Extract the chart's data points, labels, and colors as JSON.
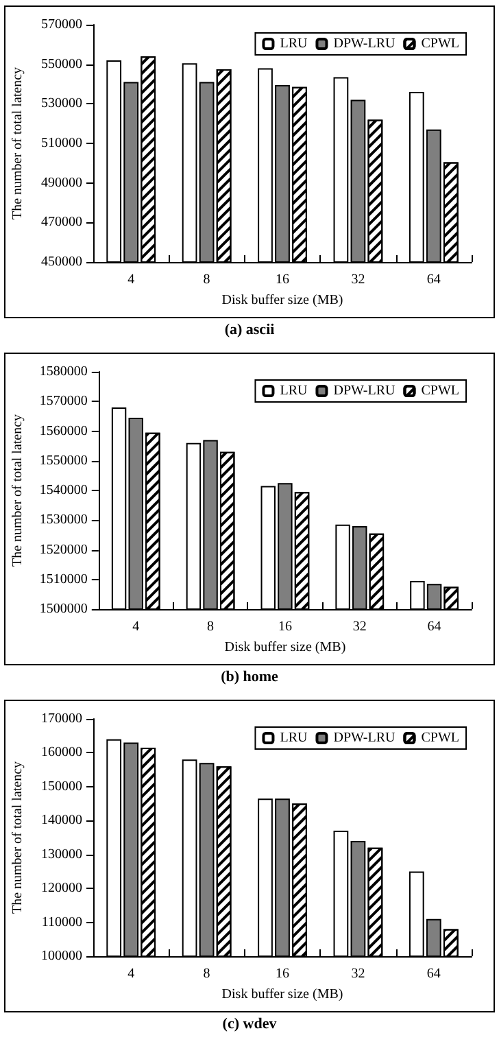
{
  "chart_data": [
    {
      "type": "bar",
      "title": "(a) ascii",
      "xlabel": "Disk buffer size (MB)",
      "ylabel": "The number of total latency",
      "categories": [
        "4",
        "8",
        "16",
        "32",
        "64"
      ],
      "ylim": [
        450000,
        570000
      ],
      "yticks": [
        450000,
        470000,
        490000,
        510000,
        530000,
        550000,
        570000
      ],
      "legend": "top right",
      "series": [
        {
          "name": "LRU",
          "color": "#ffffff",
          "values": [
            552000,
            550500,
            548000,
            543500,
            536000
          ]
        },
        {
          "name": "DPW-LRU",
          "color": "#7f7f7f",
          "values": [
            541000,
            541000,
            539500,
            532000,
            517000
          ]
        },
        {
          "name": "CPWL",
          "color": "#000000",
          "values": [
            554000,
            547500,
            538500,
            522000,
            500500
          ]
        }
      ]
    },
    {
      "type": "bar",
      "title": "(b) home",
      "xlabel": "Disk buffer size (MB)",
      "ylabel": "The number of total latency",
      "categories": [
        "4",
        "8",
        "16",
        "32",
        "64"
      ],
      "ylim": [
        1500000,
        1580000
      ],
      "yticks": [
        1500000,
        1510000,
        1520000,
        1530000,
        1540000,
        1550000,
        1560000,
        1570000,
        1580000
      ],
      "legend": "top right",
      "series": [
        {
          "name": "LRU",
          "color": "#ffffff",
          "values": [
            1568000,
            1556000,
            1541500,
            1528500,
            1509500
          ]
        },
        {
          "name": "DPW-LRU",
          "color": "#7f7f7f",
          "values": [
            1564500,
            1557000,
            1542500,
            1528000,
            1508500
          ]
        },
        {
          "name": "CPWL",
          "color": "#000000",
          "values": [
            1559500,
            1553000,
            1539500,
            1525500,
            1507500
          ]
        }
      ]
    },
    {
      "type": "bar",
      "title": "(c) wdev",
      "xlabel": "Disk buffer size (MB)",
      "ylabel": "The number of total latency",
      "categories": [
        "4",
        "8",
        "16",
        "32",
        "64"
      ],
      "ylim": [
        100000,
        170000
      ],
      "yticks": [
        100000,
        110000,
        120000,
        130000,
        140000,
        150000,
        160000,
        170000
      ],
      "legend": "top right",
      "series": [
        {
          "name": "LRU",
          "color": "#ffffff",
          "values": [
            164000,
            158000,
            146500,
            137000,
            125000
          ]
        },
        {
          "name": "DPW-LRU",
          "color": "#7f7f7f",
          "values": [
            163000,
            157000,
            146500,
            134000,
            111000
          ]
        },
        {
          "name": "CPWL",
          "color": "#000000",
          "values": [
            161500,
            156000,
            145000,
            132000,
            108000
          ]
        }
      ]
    }
  ]
}
